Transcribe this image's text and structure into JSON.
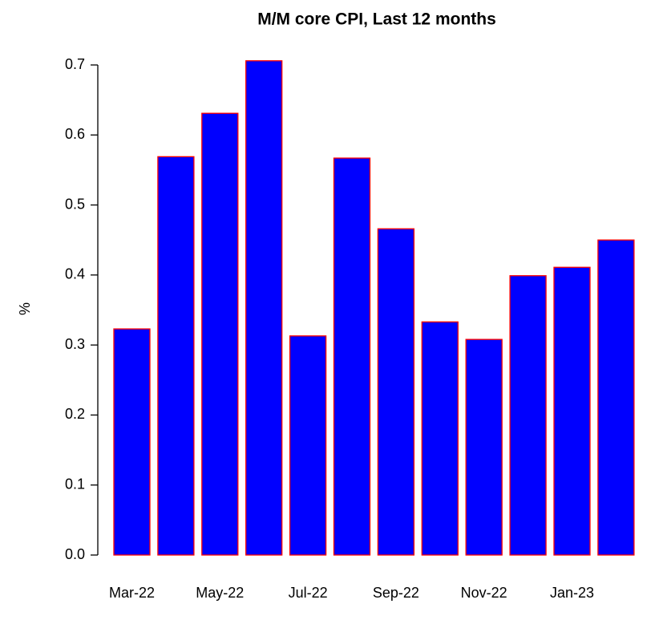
{
  "chart_data": {
    "type": "bar",
    "title": "M/M core CPI, Last 12 months",
    "y_label": "%",
    "categories": [
      "Mar-22",
      null,
      "May-22",
      null,
      "Jul-22",
      null,
      "Sep-22",
      null,
      "Nov-22",
      null,
      "Jan-23",
      null
    ],
    "values": [
      0.323,
      0.569,
      0.631,
      0.706,
      0.313,
      0.567,
      0.466,
      0.333,
      0.308,
      0.399,
      0.411,
      0.45
    ],
    "color": "#0000ff",
    "edge_color": "#ff0000",
    "ylim": [
      0,
      0.7
    ],
    "yticks": [
      {
        "value": 0,
        "label": "0.0"
      },
      0.1,
      0.2,
      0.3,
      0.4,
      0.5,
      0.6,
      0.7
    ]
  }
}
